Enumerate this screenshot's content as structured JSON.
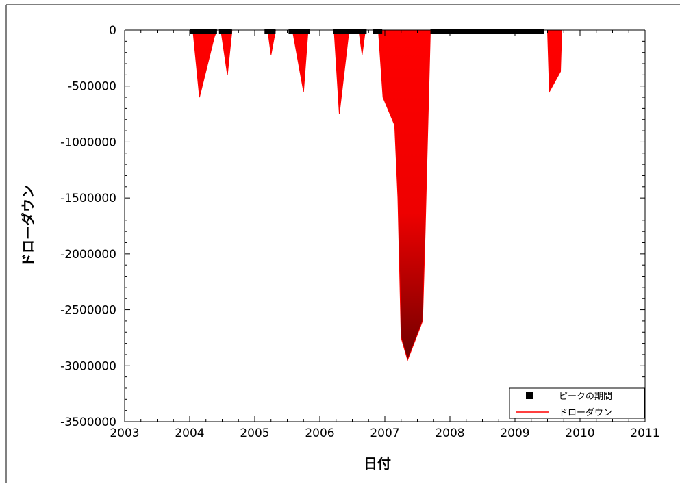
{
  "chart_data": {
    "type": "area",
    "title": "",
    "xlabel": "日付",
    "ylabel": "ドローダウン",
    "xlim": [
      2003,
      2011
    ],
    "ylim": [
      -3500000,
      0
    ],
    "x_ticks": [
      2003,
      2004,
      2005,
      2006,
      2007,
      2008,
      2009,
      2010,
      2011
    ],
    "x_tick_labels": [
      "2003",
      "2004",
      "2005",
      "2006",
      "2007",
      "2008",
      "2009",
      "2010",
      "2011"
    ],
    "y_ticks": [
      0,
      -500000,
      -1000000,
      -1500000,
      -2000000,
      -2500000,
      -3000000,
      -3500000
    ],
    "y_tick_labels": [
      "0",
      "-500000",
      "-1000000",
      "-1500000",
      "-2000000",
      "-2500000",
      "-3000000",
      "-3500000"
    ],
    "grid": false,
    "legend": {
      "placement": "bottom-right",
      "entries": [
        {
          "label": "ピークの期間",
          "marker": "square",
          "color": "#000000"
        },
        {
          "label": "ドローダウン",
          "marker": "line",
          "color": "#ff0000"
        }
      ]
    },
    "colors": {
      "drawdown": "#ff0000",
      "drawdown_deep": "#6e0000",
      "peak": "#000000"
    },
    "series": [
      {
        "name": "ドローダウン",
        "type": "area",
        "episodes": [
          {
            "x": [
              2004.05,
              2004.15,
              2004.38,
              2004.42
            ],
            "y": [
              0,
              -600000,
              -60000,
              0
            ]
          },
          {
            "x": [
              2004.48,
              2004.58,
              2004.65
            ],
            "y": [
              0,
              -400000,
              0
            ]
          },
          {
            "x": [
              2005.2,
              2005.25,
              2005.32
            ],
            "y": [
              0,
              -220000,
              0
            ]
          },
          {
            "x": [
              2005.58,
              2005.75,
              2005.82
            ],
            "y": [
              0,
              -550000,
              0
            ]
          },
          {
            "x": [
              2006.22,
              2006.3,
              2006.45
            ],
            "y": [
              0,
              -750000,
              0
            ]
          },
          {
            "x": [
              2006.6,
              2006.65,
              2006.7
            ],
            "y": [
              0,
              -220000,
              0
            ]
          },
          {
            "x": [
              2006.9,
              2006.97,
              2007.15,
              2007.2,
              2007.25,
              2007.35,
              2007.58,
              2007.62,
              2007.65,
              2007.7
            ],
            "y": [
              0,
              -600000,
              -850000,
              -1500000,
              -2750000,
              -2950000,
              -2600000,
              -1800000,
              -1100000,
              0
            ]
          },
          {
            "x": [
              2009.5,
              2009.53,
              2009.7,
              2009.72
            ],
            "y": [
              0,
              -550000,
              -370000,
              0
            ]
          }
        ]
      },
      {
        "name": "ピークの期間",
        "type": "marker_band",
        "value": 0,
        "segments": [
          [
            2004.0,
            2004.42
          ],
          [
            2004.45,
            2004.65
          ],
          [
            2005.15,
            2005.32
          ],
          [
            2005.52,
            2005.85
          ],
          [
            2006.2,
            2006.72
          ],
          [
            2006.82,
            2006.96
          ],
          [
            2007.7,
            2009.45
          ]
        ]
      }
    ]
  }
}
